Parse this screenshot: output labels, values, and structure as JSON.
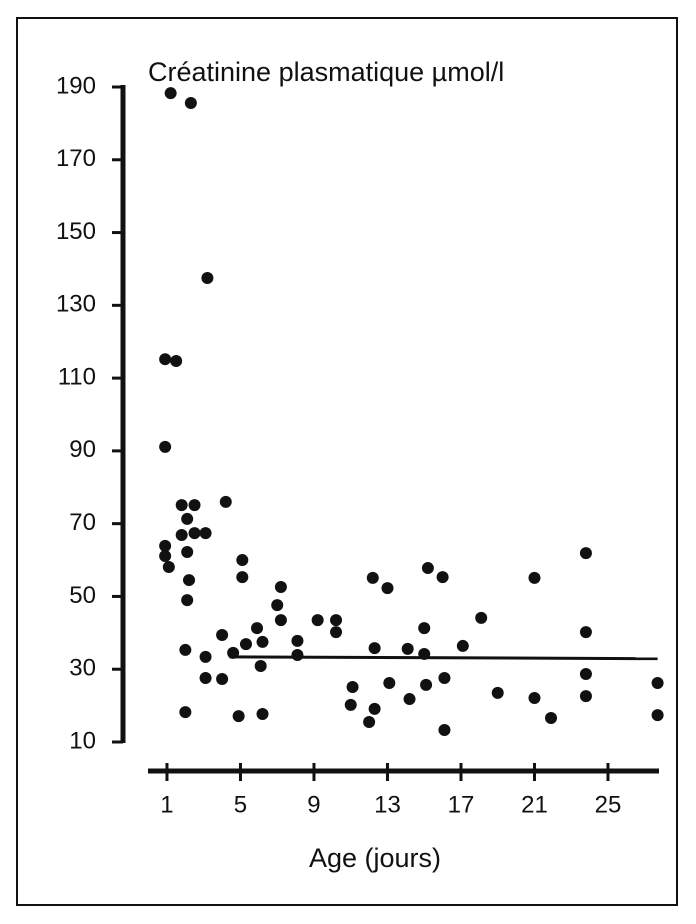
{
  "chart_data": {
    "type": "scatter",
    "title": "Créatinine plasmatique µmol/l",
    "x_label": "Age (jours)",
    "color": "#111111",
    "x": [
      1.2,
      2.3,
      3.2,
      0.9,
      1.5,
      0.9,
      1.8,
      2.5,
      4.2,
      1.8,
      2.1,
      2.5,
      3.1,
      0.9,
      0.9,
      1.1,
      2.1,
      2.2,
      2.1,
      2.0,
      2.0,
      3.1,
      3.1,
      4.0,
      4.0,
      4.6,
      4.9,
      5.1,
      5.1,
      5.3,
      5.9,
      6.2,
      6.1,
      6.2,
      7.2,
      7.0,
      7.2,
      8.1,
      8.1,
      9.2,
      10.2,
      10.2,
      11.1,
      11.0,
      12.2,
      12.3,
      12.0,
      12.3,
      13.0,
      13.1,
      14.1,
      14.2,
      15.0,
      15.0,
      15.2,
      15.1,
      16.0,
      16.1,
      16.1,
      17.1,
      18.1,
      19.0,
      21.0,
      21.0,
      21.9,
      23.8,
      23.8,
      23.8,
      23.8,
      27.7,
      27.7
    ],
    "values": [
      188.3,
      185.6,
      137.5,
      115.2,
      114.7,
      91.1,
      75.1,
      75.1,
      76,
      66.9,
      71.3,
      67.4,
      67.4,
      63.9,
      61.1,
      58.1,
      62.2,
      54.5,
      49,
      35.3,
      18.2,
      33.4,
      27.6,
      39.4,
      27.3,
      34.5,
      17.1,
      60,
      55.3,
      36.9,
      41.3,
      37.5,
      30.9,
      17.7,
      52.6,
      47.6,
      43.5,
      37.8,
      33.9,
      43.5,
      43.5,
      40.2,
      25.1,
      20.2,
      55.1,
      35.8,
      15.5,
      19.1,
      52.3,
      26.2,
      35.6,
      21.8,
      41.3,
      34.2,
      57.8,
      25.7,
      55.3,
      27.6,
      13.3,
      36.4,
      44.1,
      23.5,
      55.1,
      22.1,
      16.6,
      61.9,
      40.2,
      28.7,
      22.6,
      26.2,
      17.4
    ],
    "reference_line": {
      "x": [
        4.4,
        27.7
      ],
      "values": [
        33.4,
        32.9
      ]
    },
    "xlim": [
      0,
      27.7
    ],
    "xticks": [
      1,
      5,
      9,
      13,
      17,
      21,
      25
    ],
    "ylim": [
      10,
      190
    ],
    "yticks": [
      10,
      30,
      50,
      70,
      90,
      110,
      130,
      150,
      170,
      190
    ]
  }
}
